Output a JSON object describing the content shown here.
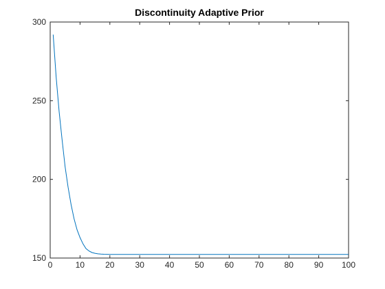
{
  "chart_data": {
    "type": "line",
    "title": "Discontinuity Adaptive Prior",
    "xlabel": "",
    "ylabel": "",
    "xlim": [
      0,
      100
    ],
    "ylim": [
      150,
      300
    ],
    "xticks": [
      0,
      10,
      20,
      30,
      40,
      50,
      60,
      70,
      80,
      90,
      100
    ],
    "yticks": [
      150,
      200,
      250,
      300
    ],
    "grid": false,
    "legend": "none",
    "series_color": "#0072BD",
    "series": [
      {
        "x": [
          1,
          2,
          3,
          4,
          5,
          6,
          7,
          8,
          9,
          10,
          11,
          12,
          13,
          14,
          15,
          16,
          17,
          18,
          20,
          25,
          30,
          40,
          50,
          60,
          70,
          80,
          90,
          100
        ],
        "y": [
          292,
          265,
          243,
          225,
          208,
          195,
          184,
          175,
          168,
          163,
          159,
          156,
          154.5,
          153.5,
          153,
          152.7,
          152.5,
          152.4,
          152.3,
          152.3,
          152.3,
          152.3,
          152.3,
          152.3,
          152.3,
          152.3,
          152.3,
          152.3
        ]
      }
    ]
  }
}
